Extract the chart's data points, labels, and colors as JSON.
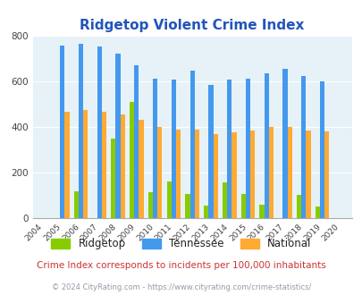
{
  "title": "Ridgetop Violent Crime Index",
  "years": [
    2004,
    2005,
    2006,
    2007,
    2008,
    2009,
    2010,
    2011,
    2012,
    2013,
    2014,
    2015,
    2016,
    2017,
    2018,
    2019,
    2020
  ],
  "ridgetop": [
    0,
    0,
    120,
    0,
    350,
    510,
    115,
    160,
    105,
    55,
    158,
    105,
    58,
    0,
    103,
    50,
    0
  ],
  "tennessee": [
    0,
    755,
    765,
    752,
    720,
    668,
    612,
    607,
    645,
    585,
    607,
    610,
    633,
    652,
    622,
    598,
    0
  ],
  "national": [
    0,
    467,
    474,
    467,
    455,
    429,
    401,
    387,
    387,
    368,
    377,
    383,
    398,
    398,
    383,
    381,
    0
  ],
  "ridgetop_color": "#88cc00",
  "tennessee_color": "#4499ee",
  "national_color": "#ffaa33",
  "bg_color": "#e6f2f7",
  "ylim": [
    0,
    800
  ],
  "yticks": [
    0,
    200,
    400,
    600,
    800
  ],
  "title_color": "#2255bb",
  "subtitle": "Crime Index corresponds to incidents per 100,000 inhabitants",
  "subtitle_color": "#cc3333",
  "footer": "© 2024 CityRating.com - https://www.cityrating.com/crime-statistics/",
  "footer_color": "#9999aa",
  "legend_labels": [
    "Ridgetop",
    "Tennessee",
    "National"
  ],
  "bar_width": 0.25
}
